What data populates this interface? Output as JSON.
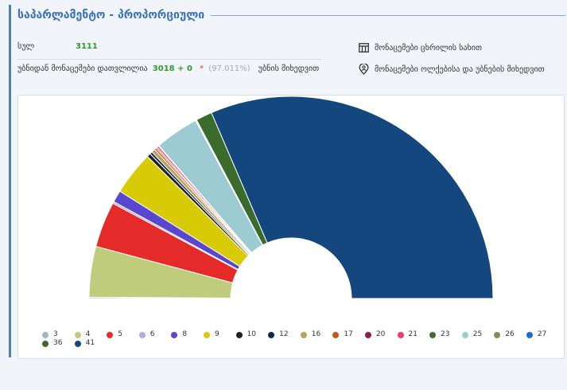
{
  "header": {
    "title": "საპარლამენტო - პროპორციული"
  },
  "stats": {
    "total_label": "სულ",
    "total_value": "3111",
    "counted_label": "უბნიდან მონაცემები დათვლილია",
    "counted_value": "3018 + 0",
    "asterisk": "*",
    "counted_percent": "(97.011%)",
    "counted_suffix": "უბნის მიხედვით"
  },
  "links": {
    "table_view": "მონაცემები ცხრილის სახით",
    "by_region": "მონაცემები ოლქებისა და უბნების მიხედვით"
  },
  "chart_data": {
    "type": "pie",
    "variant": "semi-donut",
    "series": [
      {
        "name": "3",
        "value": 0.2,
        "color": "#9fb8b9"
      },
      {
        "name": "4",
        "value": 8.1,
        "color": "#bfcc7c"
      },
      {
        "name": "5",
        "value": 7.3,
        "color": "#e52a2a"
      },
      {
        "name": "6",
        "value": 0.3,
        "color": "#b7a6d8"
      },
      {
        "name": "8",
        "value": 1.9,
        "color": "#5b46cf"
      },
      {
        "name": "9",
        "value": 7.0,
        "color": "#d7cb06"
      },
      {
        "name": "10",
        "value": 0.6,
        "color": "#222222"
      },
      {
        "name": "12",
        "value": 0.4,
        "color": "#13294a"
      },
      {
        "name": "16",
        "value": 0.6,
        "color": "#b9a45a"
      },
      {
        "name": "17",
        "value": 0.3,
        "color": "#c8541e"
      },
      {
        "name": "20",
        "value": 0.2,
        "color": "#8e1c4c"
      },
      {
        "name": "21",
        "value": 0.3,
        "color": "#ef3e63"
      },
      {
        "name": "23",
        "value": 0.1,
        "color": "#3c6e30"
      },
      {
        "name": "25",
        "value": 7.0,
        "color": "#9dcbd2"
      },
      {
        "name": "26",
        "value": 0.1,
        "color": "#8a8a55"
      },
      {
        "name": "27",
        "value": 0.1,
        "color": "#1e6dd4"
      },
      {
        "name": "36",
        "value": 2.6,
        "color": "#3a6b2d"
      },
      {
        "name": "41",
        "value": 62.9,
        "color": "#14477e"
      }
    ],
    "legend_position": "bottom"
  }
}
